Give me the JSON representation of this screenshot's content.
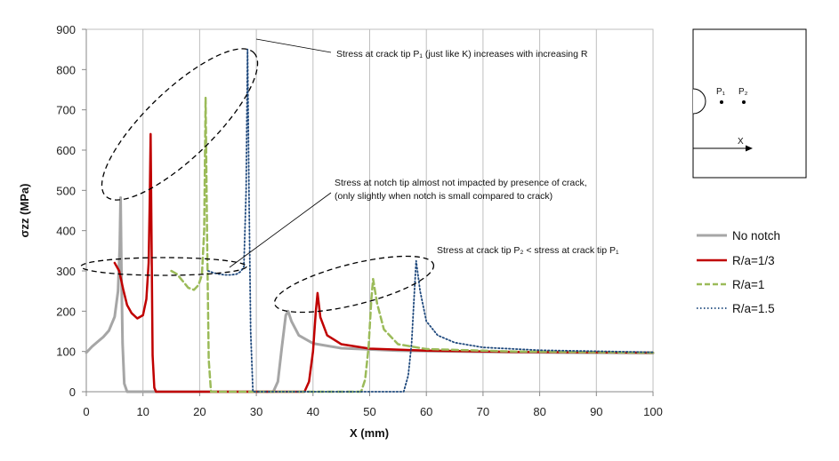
{
  "chart_data": {
    "type": "line",
    "xlabel": "X (mm)",
    "ylabel": "σzz  (MPa)",
    "xlim": [
      0,
      100
    ],
    "ylim": [
      0,
      900
    ],
    "x_ticks": [
      0,
      10,
      20,
      30,
      40,
      50,
      60,
      70,
      80,
      90,
      100
    ],
    "y_ticks": [
      0,
      100,
      200,
      300,
      400,
      500,
      600,
      700,
      800,
      900
    ],
    "grid": "vertical",
    "legend_position": "right",
    "series": [
      {
        "name": "No notch",
        "color": "#a6a6a6",
        "style": "solid",
        "points": [
          [
            0,
            97
          ],
          [
            1,
            112
          ],
          [
            2,
            124
          ],
          [
            3,
            136
          ],
          [
            4,
            152
          ],
          [
            5,
            186
          ],
          [
            5.6,
            250
          ],
          [
            5.9,
            360
          ],
          [
            6.05,
            482
          ],
          [
            6.2,
            300
          ],
          [
            6.4,
            120
          ],
          [
            6.7,
            20
          ],
          [
            7.2,
            0
          ],
          [
            33,
            0
          ],
          [
            33.8,
            25
          ],
          [
            34.5,
            110
          ],
          [
            35.2,
            190
          ],
          [
            35.6,
            200
          ],
          [
            36.2,
            175
          ],
          [
            37.5,
            140
          ],
          [
            40,
            120
          ],
          [
            45,
            108
          ],
          [
            55,
            102
          ],
          [
            70,
            99
          ],
          [
            85,
            97
          ],
          [
            100,
            96
          ]
        ]
      },
      {
        "name": "R/a=1/3",
        "color": "#c00000",
        "style": "solid",
        "points": [
          [
            5,
            320
          ],
          [
            5.8,
            300
          ],
          [
            6.5,
            255
          ],
          [
            7.2,
            215
          ],
          [
            8,
            195
          ],
          [
            9,
            182
          ],
          [
            10,
            190
          ],
          [
            10.6,
            230
          ],
          [
            11,
            320
          ],
          [
            11.2,
            480
          ],
          [
            11.35,
            640
          ],
          [
            11.5,
            400
          ],
          [
            11.7,
            90
          ],
          [
            12,
            10
          ],
          [
            12.3,
            0
          ],
          [
            38.5,
            0
          ],
          [
            39.3,
            25
          ],
          [
            40,
            100
          ],
          [
            40.5,
            200
          ],
          [
            40.8,
            245
          ],
          [
            41.3,
            185
          ],
          [
            42.5,
            140
          ],
          [
            45,
            118
          ],
          [
            50,
            107
          ],
          [
            60,
            102
          ],
          [
            75,
            99
          ],
          [
            100,
            97
          ]
        ]
      },
      {
        "name": "R/a=1",
        "color": "#9bbb59",
        "style": "dashed",
        "points": [
          [
            15,
            300
          ],
          [
            16,
            292
          ],
          [
            17,
            275
          ],
          [
            18,
            258
          ],
          [
            19,
            253
          ],
          [
            19.8,
            265
          ],
          [
            20.4,
            290
          ],
          [
            20.8,
            400
          ],
          [
            21.05,
            730
          ],
          [
            21.3,
            400
          ],
          [
            21.6,
            80
          ],
          [
            22,
            0
          ],
          [
            48.5,
            0
          ],
          [
            49.2,
            30
          ],
          [
            49.8,
            110
          ],
          [
            50.3,
            230
          ],
          [
            50.6,
            280
          ],
          [
            51.3,
            220
          ],
          [
            52.5,
            155
          ],
          [
            55,
            118
          ],
          [
            60,
            106
          ],
          [
            75,
            100
          ],
          [
            100,
            97
          ]
        ]
      },
      {
        "name": "R/a=1.5",
        "color": "#1f497d",
        "style": "dotted",
        "points": [
          [
            21.5,
            300
          ],
          [
            22.5,
            295
          ],
          [
            23.5,
            292
          ],
          [
            24.5,
            290
          ],
          [
            25.5,
            290
          ],
          [
            26.5,
            292
          ],
          [
            27.2,
            298
          ],
          [
            27.8,
            310
          ],
          [
            28.2,
            500
          ],
          [
            28.45,
            850
          ],
          [
            28.7,
            500
          ],
          [
            29,
            150
          ],
          [
            29.4,
            0
          ],
          [
            56,
            0
          ],
          [
            56.8,
            40
          ],
          [
            57.4,
            120
          ],
          [
            57.9,
            250
          ],
          [
            58.2,
            325
          ],
          [
            58.9,
            250
          ],
          [
            60,
            175
          ],
          [
            62,
            140
          ],
          [
            65,
            122
          ],
          [
            70,
            110
          ],
          [
            80,
            103
          ],
          [
            100,
            98
          ]
        ]
      }
    ],
    "annotations": [
      "Stress at crack tip P₁ (just like K)  increases with increasing R",
      "Stress at notch tip almost not impacted by presence of crack,",
      "(only slightly when notch is small compared to crack)",
      "Stress at crack tip P₂ < stress at crack tip P₁"
    ]
  },
  "inset": {
    "p1_label": "P₁",
    "p2_label": "P₂",
    "x_label": "X"
  }
}
